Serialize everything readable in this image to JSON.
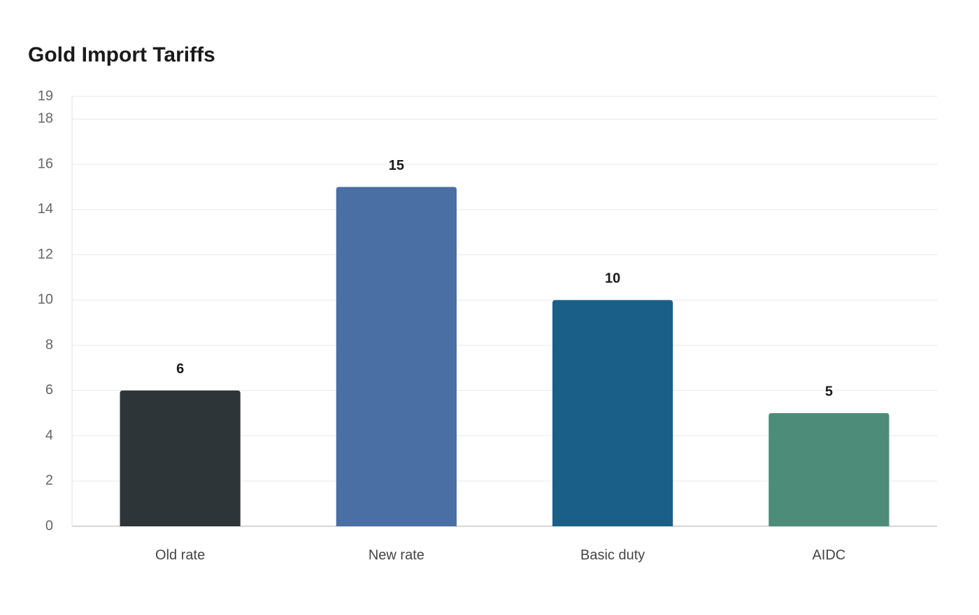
{
  "chart_data": {
    "type": "bar",
    "title": "Gold Import Tariffs",
    "categories": [
      "Old rate",
      "New rate",
      "Basic duty",
      "AIDC"
    ],
    "values": [
      6,
      15,
      10,
      5
    ],
    "colors": [
      "#2e3538",
      "#4a6fa5",
      "#1a5f88",
      "#4e8c7a"
    ],
    "ylim": [
      0,
      19
    ],
    "yticks": [
      0,
      2,
      4,
      6,
      8,
      10,
      12,
      14,
      16,
      18,
      19
    ],
    "grid": true
  }
}
